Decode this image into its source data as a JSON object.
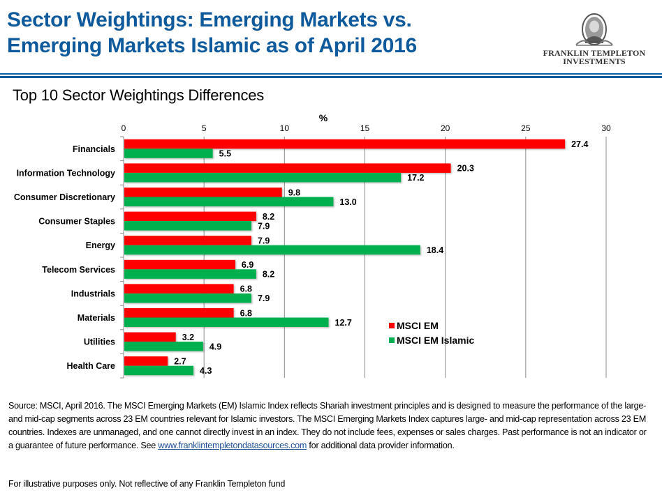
{
  "header": {
    "title_line1": "Sector Weightings: Emerging Markets vs.",
    "title_line2": "Emerging Markets Islamic as of April 2016",
    "logo_icon": "franklin-portrait-icon",
    "logo_line1": "FRANKLIN TEMPLETON",
    "logo_line2": "INVESTMENTS",
    "accent_color": "#0f5a9c"
  },
  "subtitle": "Top 10 Sector Weightings Differences",
  "chart_data": {
    "type": "bar",
    "orientation": "horizontal",
    "title": "Top 10 Sector Weightings Differences",
    "xlabel": "%",
    "ylabel": "",
    "xlim": [
      0,
      30
    ],
    "xticks": [
      0,
      5,
      10,
      15,
      20,
      25,
      30
    ],
    "grid": true,
    "legend_position": "lower-right",
    "categories": [
      "Financials",
      "Information Technology",
      "Consumer Discretionary",
      "Consumer Staples",
      "Energy",
      "Telecom Services",
      "Industrials",
      "Materials",
      "Utilities",
      "Health Care"
    ],
    "series": [
      {
        "name": "MSCI EM",
        "color": "#ff0000",
        "values": [
          27.4,
          20.3,
          9.8,
          8.2,
          7.9,
          6.9,
          6.8,
          6.8,
          3.2,
          2.7
        ],
        "labels": [
          "27.4",
          "20.3",
          "9.8",
          "8.2",
          "7.9",
          "6.9",
          "6.8",
          "6.8",
          "3.2",
          "2.7"
        ]
      },
      {
        "name": "MSCI EM Islamic",
        "color": "#00b050",
        "values": [
          5.5,
          17.2,
          13.0,
          7.9,
          18.4,
          8.2,
          7.9,
          12.7,
          4.9,
          4.3
        ],
        "labels": [
          "5.5",
          "17.2",
          "13.0",
          "7.9",
          "18.4",
          "8.2",
          "7.9",
          "12.7",
          "4.9",
          "4.3"
        ]
      }
    ]
  },
  "footnote": {
    "text_before_link": "Source: MSCI, April 2016. The MSCI Emerging Markets (EM) Islamic Index reflects Shariah investment principles and is designed to measure the performance of the large- and mid-cap segments across 23 EM countries relevant for Islamic investors. The MSCI Emerging Markets Index captures large- and mid-cap representation across 23 EM countries. Indexes are unmanaged, and one cannot directly invest in an index. They do not include fees, expenses or sales charges. Past performance is not an indicator or a guarantee of future  performance. See ",
    "link_text": "www.franklintempletondatasources.com",
    "text_after_link": " for additional data provider information.",
    "disclaimer": "For illustrative purposes only. Not reflective of any Franklin Templeton fund"
  }
}
